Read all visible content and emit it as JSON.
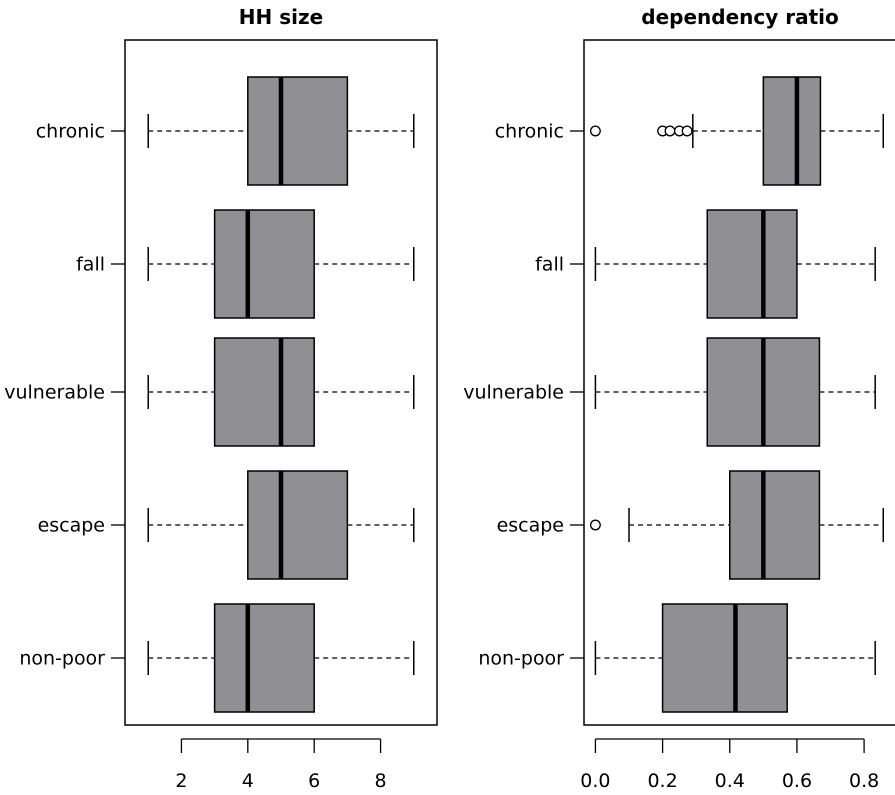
{
  "chart_data": [
    {
      "type": "boxplot",
      "orientation": "horizontal",
      "title": "HH size",
      "xlabel": "",
      "ylabel": "",
      "categories": [
        "chronic",
        "fall",
        "vulnerable",
        "escape",
        "non-poor"
      ],
      "xlim": [
        0.3,
        9.7
      ],
      "xticks": [
        2,
        4,
        6,
        8
      ],
      "xtick_labels": [
        "2",
        "4",
        "6",
        "8"
      ],
      "grid": false,
      "box_color": "#909094",
      "boxes": [
        {
          "category": "chronic",
          "whisker_low": 1,
          "q1": 4,
          "median": 5,
          "q3": 7,
          "whisker_high": 9,
          "outliers": []
        },
        {
          "category": "fall",
          "whisker_low": 1,
          "q1": 3,
          "median": 4,
          "q3": 6,
          "whisker_high": 9,
          "outliers": []
        },
        {
          "category": "vulnerable",
          "whisker_low": 1,
          "q1": 3,
          "median": 5,
          "q3": 6,
          "whisker_high": 9,
          "outliers": []
        },
        {
          "category": "escape",
          "whisker_low": 1,
          "q1": 4,
          "median": 5,
          "q3": 7,
          "whisker_high": 9,
          "outliers": []
        },
        {
          "category": "non-poor",
          "whisker_low": 1,
          "q1": 3,
          "median": 4,
          "q3": 6,
          "whisker_high": 9,
          "outliers": []
        }
      ]
    },
    {
      "type": "boxplot",
      "orientation": "horizontal",
      "title": "dependency ratio",
      "xlabel": "",
      "ylabel": "",
      "categories": [
        "chronic",
        "fall",
        "vulnerable",
        "escape",
        "non-poor"
      ],
      "xlim": [
        -0.034,
        0.895
      ],
      "xticks": [
        0.0,
        0.2,
        0.4,
        0.6,
        0.8
      ],
      "xtick_labels": [
        "0.0",
        "0.2",
        "0.4",
        "0.6",
        "0.8"
      ],
      "grid": false,
      "box_color": "#909094",
      "boxes": [
        {
          "category": "chronic",
          "whisker_low": 0.29,
          "q1": 0.5,
          "median": 0.6,
          "q3": 0.67,
          "whisker_high": 0.857,
          "outliers": [
            0.0,
            0.2,
            0.222,
            0.25,
            0.273
          ]
        },
        {
          "category": "fall",
          "whisker_low": 0.0,
          "q1": 0.333,
          "median": 0.5,
          "q3": 0.6,
          "whisker_high": 0.833,
          "outliers": []
        },
        {
          "category": "vulnerable",
          "whisker_low": 0.0,
          "q1": 0.333,
          "median": 0.5,
          "q3": 0.667,
          "whisker_high": 0.833,
          "outliers": []
        },
        {
          "category": "escape",
          "whisker_low": 0.1,
          "q1": 0.4,
          "median": 0.5,
          "q3": 0.667,
          "whisker_high": 0.857,
          "outliers": [
            0.0
          ]
        },
        {
          "category": "non-poor",
          "whisker_low": 0.0,
          "q1": 0.2,
          "median": 0.417,
          "q3": 0.571,
          "whisker_high": 0.833,
          "outliers": []
        }
      ]
    }
  ]
}
